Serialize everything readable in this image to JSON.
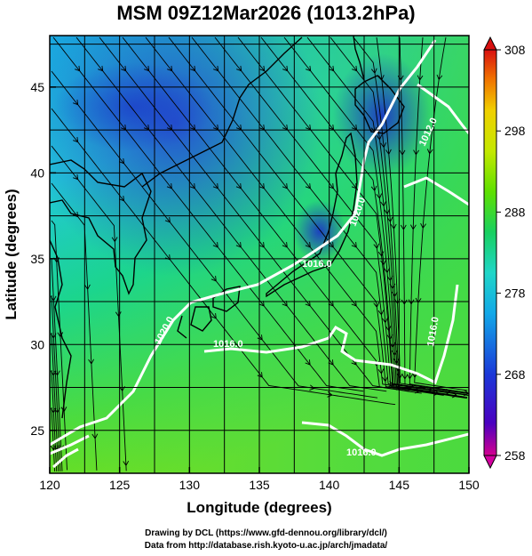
{
  "title": "MSM 09Z12Mar2026 (1013.2hPa)",
  "xlabel": "Longitude (degrees)",
  "ylabel": "Latitude  (degrees)",
  "x_ticks": [
    "120",
    "125",
    "130",
    "135",
    "140",
    "145",
    "150"
  ],
  "y_ticks": [
    "25",
    "30",
    "35",
    "40",
    "45"
  ],
  "colorbar_ticks": [
    "308",
    "298",
    "288",
    "278",
    "268",
    "258"
  ],
  "contour_labels": [
    "1020.0",
    "1016.0",
    "1012.0",
    "1020.0",
    "1016.0",
    "1016.0",
    "1016.0"
  ],
  "credits": {
    "line1": "Drawing by DCL (https://www.gfd-dennou.org/library/dcl/)",
    "line2": "Data from http://database.rish.kyoto-u.ac.jp/arch/jmadata/"
  },
  "map_extent": {
    "lon": [
      120,
      150
    ],
    "lat": [
      22.5,
      48
    ]
  },
  "colorbar_range": [
    258,
    308
  ],
  "colors": {
    "cold": "#1f3fd0",
    "cool": "#25c4e6",
    "mild": "#18d36e",
    "warm": "#9ae200",
    "isobar": "#ffffff",
    "streamline": "#000000"
  }
}
